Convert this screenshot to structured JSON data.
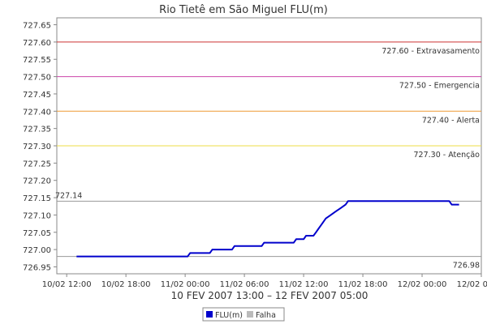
{
  "chart_data": {
    "type": "line",
    "title": "Rio Tietê em São Miguel FLU(m)",
    "subtitle": "10 FEV 2007 13:00 – 12 FEV 2007 05:00",
    "x_ticks": [
      "10/02 12:00",
      "10/02 18:00",
      "11/02 00:00",
      "11/02 06:00",
      "11/02 12:00",
      "11/02 18:00",
      "12/02 00:00",
      "12/02 06:00"
    ],
    "y_ticks": [
      "726.95",
      "727.00",
      "727.05",
      "727.10",
      "727.15",
      "727.20",
      "727.25",
      "727.30",
      "727.35",
      "727.40",
      "727.45",
      "727.50",
      "727.55",
      "727.60",
      "727.65"
    ],
    "xlim": [
      "10/02 11:00",
      "12/02 06:00"
    ],
    "ylim": [
      726.93,
      727.67
    ],
    "grid": false,
    "legend_position": "bottom",
    "thresholds": [
      {
        "value": 727.6,
        "label": "727.60 - Extravasamento",
        "color": "#cc3333"
      },
      {
        "value": 727.5,
        "label": "727.50 - Emergencia",
        "color": "#cc44aa"
      },
      {
        "value": 727.4,
        "label": "727.40 - Alerta",
        "color": "#ee9933"
      },
      {
        "value": 727.3,
        "label": "727.30 - Atenção",
        "color": "#eedd44"
      }
    ],
    "reference_lines": [
      {
        "value": 727.14,
        "label": "727.14",
        "color": "#999999"
      },
      {
        "value": 726.98,
        "label": "726.98",
        "color": "#999999"
      }
    ],
    "series": [
      {
        "name": "FLU(m)",
        "color": "#0000cc",
        "points": [
          [
            "10/02 13:00",
            726.98
          ],
          [
            "11/02 00:15",
            726.98
          ],
          [
            "11/02 00:30",
            726.99
          ],
          [
            "11/02 02:30",
            726.99
          ],
          [
            "11/02 02:45",
            727.0
          ],
          [
            "11/02 04:45",
            727.0
          ],
          [
            "11/02 05:00",
            727.01
          ],
          [
            "11/02 07:45",
            727.01
          ],
          [
            "11/02 08:00",
            727.02
          ],
          [
            "11/02 11:00",
            727.02
          ],
          [
            "11/02 11:15",
            727.03
          ],
          [
            "11/02 12:00",
            727.03
          ],
          [
            "11/02 12:15",
            727.04
          ],
          [
            "11/02 13:00",
            727.04
          ],
          [
            "11/02 13:15",
            727.05
          ],
          [
            "11/02 13:30",
            727.06
          ],
          [
            "11/02 13:45",
            727.07
          ],
          [
            "11/02 14:00",
            727.08
          ],
          [
            "11/02 14:15",
            727.09
          ],
          [
            "11/02 14:45",
            727.1
          ],
          [
            "11/02 15:15",
            727.11
          ],
          [
            "11/02 15:45",
            727.12
          ],
          [
            "11/02 16:15",
            727.13
          ],
          [
            "11/02 16:30",
            727.14
          ],
          [
            "12/02 02:45",
            727.14
          ],
          [
            "12/02 03:00",
            727.13
          ],
          [
            "12/02 03:45",
            727.13
          ]
        ]
      },
      {
        "name": "Falha",
        "color": "#bbbbbb",
        "points": []
      }
    ]
  }
}
